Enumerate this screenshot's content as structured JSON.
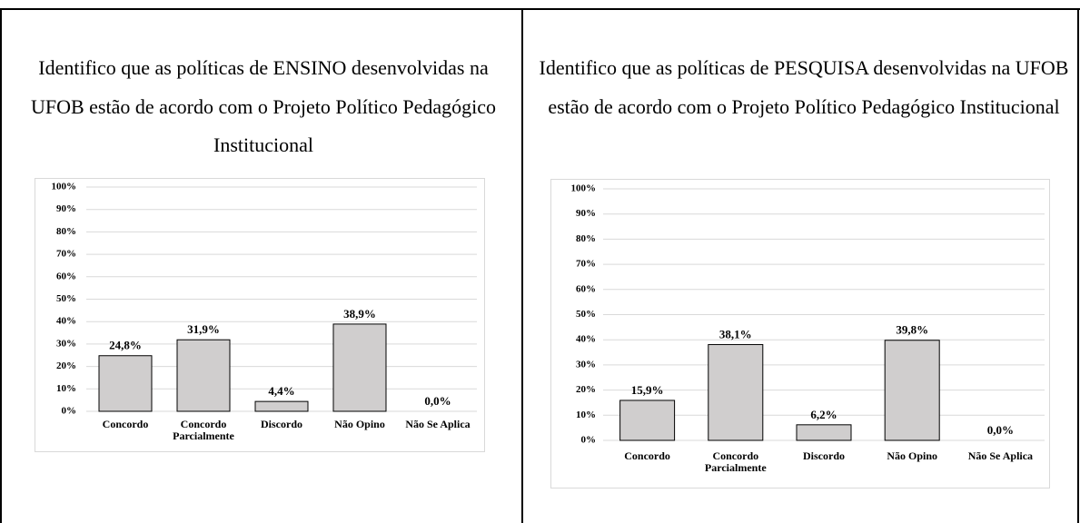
{
  "chart_data": [
    {
      "type": "bar",
      "title": "Identifico que as políticas de ENSINO desenvolvidas na UFOB estão de acordo com o Projeto Político Pedagógico Institucional",
      "categories": [
        "Concordo",
        "Concordo Parcialmente",
        "Discordo",
        "Não Opino",
        "Não Se Aplica"
      ],
      "values": [
        24.8,
        31.9,
        4.4,
        38.9,
        0.0
      ],
      "value_labels": [
        "24,8%",
        "31,9%",
        "4,4%",
        "38,9%",
        "0,0%"
      ],
      "color": "#d0cece",
      "ylim": [
        0,
        100
      ],
      "yticks": [
        {
          "value": 0,
          "label": "0%"
        },
        {
          "value": 10,
          "label": "10%"
        },
        {
          "value": 20,
          "label": "20%"
        },
        {
          "value": 30,
          "label": "30%"
        },
        {
          "value": 40,
          "label": "40%"
        },
        {
          "value": 50,
          "label": "50%"
        },
        {
          "value": 60,
          "label": "60%"
        },
        {
          "value": 70,
          "label": "70%"
        },
        {
          "value": 80,
          "label": "80%"
        },
        {
          "value": 90,
          "label": "90%"
        },
        {
          "value": 100,
          "label": "100%"
        }
      ],
      "grid": true
    },
    {
      "type": "bar",
      "title": "Identifico que as políticas de PESQUISA desenvolvidas na UFOB estão de acordo com o Projeto Político Pedagógico Institucional",
      "categories": [
        "Concordo",
        "Concordo Parcialmente",
        "Discordo",
        "Não Opino",
        "Não Se Aplica"
      ],
      "values": [
        15.9,
        38.1,
        6.2,
        39.8,
        0.0
      ],
      "value_labels": [
        "15,9%",
        "38,1%",
        "6,2%",
        "39,8%",
        "0,0%"
      ],
      "color": "#d0cece",
      "ylim": [
        0,
        100
      ],
      "yticks": [
        {
          "value": 0,
          "label": "0%"
        },
        {
          "value": 10,
          "label": "10%"
        },
        {
          "value": 20,
          "label": "20%"
        },
        {
          "value": 30,
          "label": "30%"
        },
        {
          "value": 40,
          "label": "40%"
        },
        {
          "value": 50,
          "label": "50%"
        },
        {
          "value": 60,
          "label": "60%"
        },
        {
          "value": 70,
          "label": "70%"
        },
        {
          "value": 80,
          "label": "80%"
        },
        {
          "value": 90,
          "label": "90%"
        },
        {
          "value": 100,
          "label": "100%"
        }
      ],
      "grid": true
    }
  ]
}
